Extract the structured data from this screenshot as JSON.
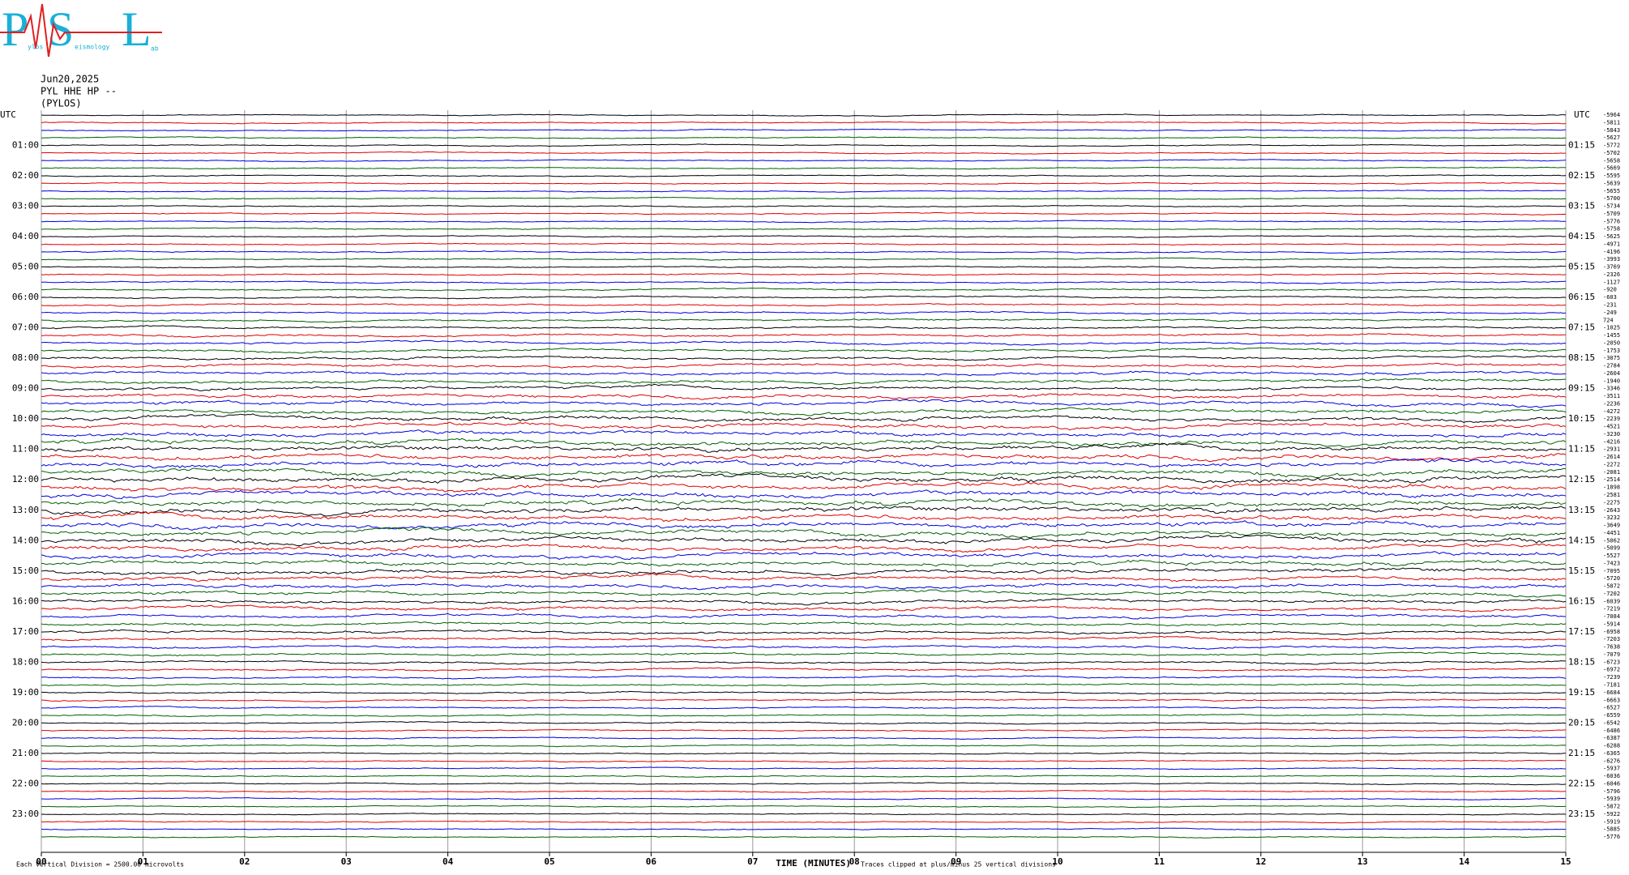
{
  "logo": {
    "letters": [
      "P",
      "S",
      "L"
    ],
    "small": [
      "ylos",
      "eismology",
      "ab"
    ]
  },
  "header": {
    "date": "Jun20,2025",
    "channel": "PYL HHE HP --",
    "location": "(PYLOS)"
  },
  "left_axis": {
    "title": "UTC",
    "labels": [
      "01:00",
      "02:00",
      "03:00",
      "04:00",
      "05:00",
      "06:00",
      "07:00",
      "08:00",
      "09:00",
      "10:00",
      "11:00",
      "12:00",
      "13:00",
      "14:00",
      "15:00",
      "16:00",
      "17:00",
      "18:00",
      "19:00",
      "20:00",
      "21:00",
      "22:00",
      "23:00"
    ]
  },
  "right_axis": {
    "title": "UTC",
    "labels": [
      "01:15",
      "02:15",
      "03:15",
      "04:15",
      "05:15",
      "06:15",
      "07:15",
      "08:15",
      "09:15",
      "10:15",
      "11:15",
      "12:15",
      "13:15",
      "14:15",
      "15:15",
      "16:15",
      "17:15",
      "18:15",
      "19:15",
      "20:15",
      "21:15",
      "22:15",
      "23:15"
    ]
  },
  "offsets": [
    -5964,
    -5811,
    -5843,
    -5627,
    -5772,
    -5702,
    -5658,
    -5669,
    -5595,
    -5639,
    -5655,
    -5700,
    -5734,
    -5709,
    -5776,
    -5758,
    -5625,
    -4971,
    -4196,
    -3993,
    -3769,
    -2326,
    -1127,
    -920,
    -603,
    -231,
    -249,
    724,
    -1025,
    -1455,
    -2050,
    -1753,
    -3075,
    -2784,
    -2604,
    -1940,
    -3346,
    -3511,
    -2236,
    -4272,
    -2239,
    -4521,
    -3230,
    -4216,
    -2931,
    -2614,
    -2272,
    -2081,
    -2514,
    -1898,
    -2581,
    -2275,
    -2643,
    -3232,
    -3649,
    -4451,
    -5062,
    -5099,
    -5527,
    -7423,
    -7095,
    -5720,
    -5872,
    -7202,
    -6039,
    -7219,
    -7084,
    -5914,
    -6958,
    -7203,
    -7638,
    -7079,
    -6723,
    -6972,
    -7239,
    -7181,
    -6684,
    -6663,
    -6527,
    -6559,
    -6542,
    -6486,
    -6387,
    -6288,
    -6365,
    -6276,
    -5937,
    -6036,
    -6046,
    -5796,
    -5939,
    -5872,
    -5922,
    -5919,
    -5885,
    -5776
  ],
  "x_axis": {
    "xlim": [
      0,
      15
    ],
    "xticks": [
      {
        "value": 0,
        "label": "00"
      },
      {
        "value": 1,
        "label": "01"
      },
      {
        "value": 2,
        "label": "02"
      },
      {
        "value": 3,
        "label": "03"
      },
      {
        "value": 4,
        "label": "04"
      },
      {
        "value": 5,
        "label": "05"
      },
      {
        "value": 6,
        "label": "06"
      },
      {
        "value": 7,
        "label": "07"
      },
      {
        "value": 8,
        "label": "08"
      },
      {
        "value": 9,
        "label": "09"
      },
      10,
      11,
      12,
      13,
      14,
      15
    ],
    "title": "TIME (MINUTES)"
  },
  "footer": {
    "scale": "Each Vertical Division = 2500.00 microvolts",
    "clip": "Traces clipped at plus/minus 25 vertical divisions"
  }
}
